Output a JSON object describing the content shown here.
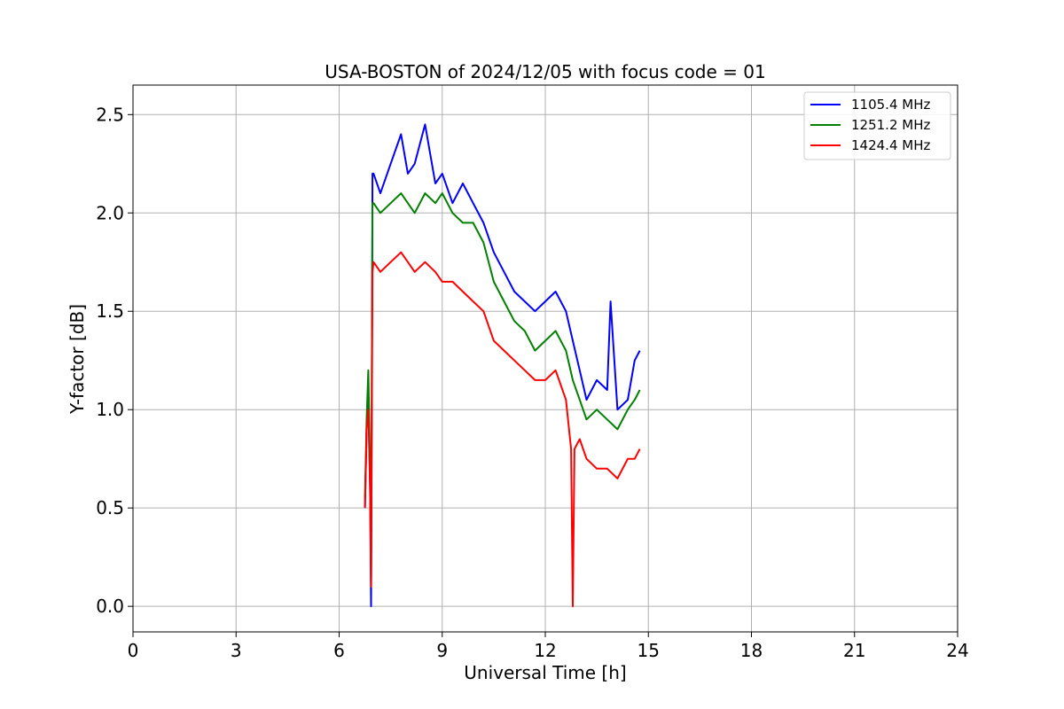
{
  "chart_data": {
    "type": "line",
    "title": "USA-BOSTON of 2024/12/05 with focus code = 01",
    "xlabel": "Universal Time [h]",
    "ylabel": "Y-factor [dB]",
    "xlim": [
      0,
      24
    ],
    "ylim": [
      -0.13,
      2.65
    ],
    "xticks": [
      0,
      3,
      6,
      9,
      12,
      15,
      18,
      21,
      24
    ],
    "xtick_labels": [
      "0",
      "3",
      "6",
      "9",
      "12",
      "15",
      "18",
      "21",
      "24"
    ],
    "yticks": [
      0.0,
      0.5,
      1.0,
      1.5,
      2.0,
      2.5
    ],
    "ytick_labels": [
      "0.0",
      "0.5",
      "1.0",
      "1.5",
      "2.0",
      "2.5"
    ],
    "grid": true,
    "legend_position": "top-right",
    "series": [
      {
        "name": "1105.4 MHz",
        "color": "#0000ff",
        "x": [
          6.75,
          6.8,
          6.85,
          6.9,
          6.93,
          6.95,
          6.97,
          7.0,
          7.2,
          7.5,
          7.8,
          8.0,
          8.2,
          8.5,
          8.8,
          9.0,
          9.3,
          9.6,
          9.9,
          10.2,
          10.5,
          10.8,
          11.1,
          11.4,
          11.7,
          12.0,
          12.3,
          12.6,
          12.8,
          13.0,
          13.2,
          13.5,
          13.8,
          13.9,
          14.1,
          14.4,
          14.6,
          14.75
        ],
        "y": [
          0.5,
          0.9,
          1.1,
          0.6,
          0.0,
          1.0,
          2.2,
          2.2,
          2.1,
          2.25,
          2.4,
          2.2,
          2.25,
          2.45,
          2.15,
          2.2,
          2.05,
          2.15,
          2.05,
          1.95,
          1.8,
          1.7,
          1.6,
          1.55,
          1.5,
          1.55,
          1.6,
          1.5,
          1.35,
          1.2,
          1.05,
          1.15,
          1.1,
          1.55,
          1.0,
          1.05,
          1.25,
          1.3
        ]
      },
      {
        "name": "1251.2 MHz",
        "color": "#008000",
        "x": [
          6.75,
          6.8,
          6.85,
          6.9,
          6.93,
          6.95,
          6.97,
          7.0,
          7.2,
          7.5,
          7.8,
          8.0,
          8.2,
          8.5,
          8.8,
          9.0,
          9.3,
          9.6,
          9.9,
          10.2,
          10.5,
          10.8,
          11.1,
          11.4,
          11.7,
          12.0,
          12.3,
          12.6,
          12.8,
          13.0,
          13.2,
          13.5,
          13.8,
          14.1,
          14.4,
          14.6,
          14.75
        ],
        "y": [
          0.55,
          0.95,
          1.2,
          0.7,
          0.1,
          1.1,
          2.05,
          2.05,
          2.0,
          2.05,
          2.1,
          2.05,
          2.0,
          2.1,
          2.05,
          2.1,
          2.0,
          1.95,
          1.95,
          1.85,
          1.65,
          1.55,
          1.45,
          1.4,
          1.3,
          1.35,
          1.4,
          1.3,
          1.15,
          1.05,
          0.95,
          1.0,
          0.95,
          0.9,
          1.0,
          1.05,
          1.1
        ]
      },
      {
        "name": "1424.4 MHz",
        "color": "#ff0000",
        "x": [
          6.75,
          6.8,
          6.85,
          6.9,
          6.93,
          6.95,
          6.97,
          7.0,
          7.2,
          7.5,
          7.8,
          8.0,
          8.2,
          8.5,
          8.8,
          9.0,
          9.3,
          9.6,
          9.9,
          10.2,
          10.5,
          10.8,
          11.1,
          11.4,
          11.7,
          12.0,
          12.3,
          12.6,
          12.75,
          12.8,
          12.85,
          13.0,
          13.2,
          13.5,
          13.8,
          14.1,
          14.4,
          14.6,
          14.75
        ],
        "y": [
          0.5,
          0.9,
          1.0,
          0.6,
          0.1,
          0.9,
          1.7,
          1.75,
          1.7,
          1.75,
          1.8,
          1.75,
          1.7,
          1.75,
          1.7,
          1.65,
          1.65,
          1.6,
          1.55,
          1.5,
          1.35,
          1.3,
          1.25,
          1.2,
          1.15,
          1.15,
          1.2,
          1.05,
          0.8,
          0.0,
          0.8,
          0.85,
          0.75,
          0.7,
          0.7,
          0.65,
          0.75,
          0.75,
          0.8
        ]
      }
    ]
  }
}
